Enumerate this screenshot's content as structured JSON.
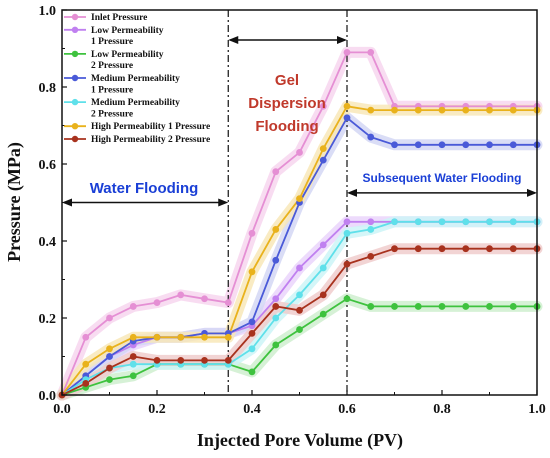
{
  "chart_data": {
    "type": "line",
    "xlabel": "Injected Pore Volume (PV)",
    "ylabel": "Pressure (MPa)",
    "xlim": [
      0,
      1.0
    ],
    "ylim": [
      0,
      1.0
    ],
    "x_ticks": [
      "0.0",
      "0.2",
      "0.4",
      "0.6",
      "0.8",
      "1.0"
    ],
    "y_ticks": [
      "0.0",
      "0.2",
      "0.4",
      "0.6",
      "0.8",
      "1.0"
    ],
    "legend_position": "top-left",
    "grid": false,
    "x": [
      0,
      0.05,
      0.1,
      0.15,
      0.2,
      0.25,
      0.3,
      0.35,
      0.4,
      0.45,
      0.5,
      0.55,
      0.6,
      0.65,
      0.7,
      0.75,
      0.8,
      0.85,
      0.9,
      0.95,
      1.0
    ],
    "series": [
      {
        "name": "Inlet Pressure",
        "color": "#e58fd4",
        "band": "#f7d6ef",
        "values": [
          0,
          0.15,
          0.2,
          0.23,
          0.24,
          0.26,
          0.25,
          0.24,
          0.42,
          0.58,
          0.63,
          0.75,
          0.89,
          0.89,
          0.75,
          0.75,
          0.75,
          0.75,
          0.75,
          0.75,
          0.75
        ]
      },
      {
        "name": "Low Permeability 1 Pressure",
        "color": "#c080f0",
        "band": "#ead5fb",
        "values": [
          0,
          0.05,
          0.1,
          0.13,
          0.15,
          0.15,
          0.16,
          0.16,
          0.18,
          0.25,
          0.33,
          0.39,
          0.45,
          0.45,
          0.45,
          0.45,
          0.45,
          0.45,
          0.45,
          0.45,
          0.45
        ]
      },
      {
        "name": "Low Permeability 2 Pressure",
        "color": "#3ec23e",
        "band": "#cfeecf",
        "values": [
          0,
          0.02,
          0.04,
          0.05,
          0.08,
          0.08,
          0.08,
          0.08,
          0.06,
          0.13,
          0.17,
          0.21,
          0.25,
          0.23,
          0.23,
          0.23,
          0.23,
          0.23,
          0.23,
          0.23,
          0.23
        ]
      },
      {
        "name": "Medium Permeability 1 Pressure",
        "color": "#4a5ad8",
        "band": "#d3d7f5",
        "values": [
          0,
          0.05,
          0.1,
          0.14,
          0.15,
          0.15,
          0.16,
          0.16,
          0.19,
          0.35,
          0.5,
          0.61,
          0.72,
          0.67,
          0.65,
          0.65,
          0.65,
          0.65,
          0.65,
          0.65,
          0.65
        ]
      },
      {
        "name": "Medium Permeability 2 Pressure",
        "color": "#5fe0ea",
        "band": "#cdf4f7",
        "values": [
          0,
          0.04,
          0.07,
          0.08,
          0.08,
          0.08,
          0.08,
          0.08,
          0.12,
          0.2,
          0.26,
          0.33,
          0.42,
          0.43,
          0.45,
          0.45,
          0.45,
          0.45,
          0.45,
          0.45,
          0.45
        ]
      },
      {
        "name": "High Permeability 1 Pressure",
        "color": "#e9b21c",
        "band": "#f8e8b8",
        "values": [
          0,
          0.08,
          0.12,
          0.15,
          0.15,
          0.15,
          0.15,
          0.15,
          0.32,
          0.43,
          0.51,
          0.64,
          0.75,
          0.74,
          0.74,
          0.74,
          0.74,
          0.74,
          0.74,
          0.74,
          0.74
        ]
      },
      {
        "name": "High Permeability 2 Pressure",
        "color": "#a8321e",
        "band": "#f0cccc",
        "values": [
          0,
          0.03,
          0.07,
          0.1,
          0.09,
          0.09,
          0.09,
          0.09,
          0.16,
          0.23,
          0.22,
          0.26,
          0.34,
          0.36,
          0.38,
          0.38,
          0.38,
          0.38,
          0.38,
          0.38,
          0.38
        ]
      }
    ],
    "annotations": {
      "water_flooding": "Water Flooding",
      "gel_line1": "Gel",
      "gel_line2": "Dispersion",
      "gel_line3": "Flooding",
      "subsequent": "Subsequent Water Flooding"
    },
    "phase_boundaries": [
      0.35,
      0.6
    ],
    "colors": {
      "water_text": "#1a3fd6",
      "gel_text": "#c0392b",
      "subsequent_text": "#1a3fd6"
    }
  }
}
